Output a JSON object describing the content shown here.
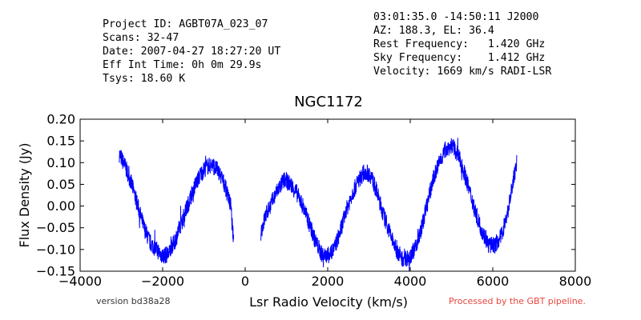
{
  "header_left": [
    "Project ID: AGBT07A_023_07",
    "Scans: 32-47",
    "Date: 2007-04-27 18:27:20 UT",
    "Eff Int Time: 0h 0m 29.9s",
    "Tsys: 18.60 K"
  ],
  "header_right": [
    "03:01:35.0 -14:50:11 J2000",
    "AZ: 188.3, EL: 36.4",
    "Rest Frequency:   1.420 GHz",
    "Sky Frequency:    1.412 GHz",
    "Velocity: 1669 km/s RADI-LSR"
  ],
  "footer": {
    "version": "version bd38a28",
    "pipeline": "Processed by the GBT pipeline.",
    "pipeline_color": "#e8453c"
  },
  "chart_data": {
    "type": "line",
    "title": "NGC1172",
    "xlabel": "Lsr Radio Velocity (km/s)",
    "ylabel": "Flux Density (Jy)",
    "xlim": [
      -4000,
      8000
    ],
    "ylim": [
      -0.15,
      0.2
    ],
    "xticks": [
      -4000,
      -2000,
      0,
      2000,
      4000,
      6000,
      8000
    ],
    "xtick_labels": [
      "−4000",
      "−2000",
      "0",
      "2000",
      "4000",
      "6000",
      "8000"
    ],
    "yticks": [
      -0.15,
      -0.1,
      -0.05,
      0.0,
      0.05,
      0.1,
      0.15,
      0.2
    ],
    "ytick_labels": [
      "−0.15",
      "−0.10",
      "−0.05",
      "0.00",
      "0.05",
      "0.10",
      "0.15",
      "0.20"
    ],
    "grid": false,
    "line_color": "#0000ff",
    "series": [
      {
        "segment": 1,
        "x": [
          -3050,
          -2900,
          -2750,
          -2600,
          -2450,
          -2300,
          -2150,
          -2000,
          -1850,
          -1700,
          -1550,
          -1400,
          -1250,
          -1100,
          -950,
          -800,
          -650,
          -500,
          -350,
          -280
        ],
        "y": [
          0.12,
          0.09,
          0.05,
          0.0,
          -0.05,
          -0.085,
          -0.1,
          -0.115,
          -0.11,
          -0.08,
          -0.04,
          0.0,
          0.04,
          0.07,
          0.09,
          0.095,
          0.08,
          0.05,
          0.0,
          -0.085
        ]
      },
      {
        "segment": 2,
        "x": [
          380,
          500,
          650,
          800,
          950,
          1100,
          1250,
          1400,
          1550,
          1700,
          1850,
          2000,
          2150,
          2300,
          2450,
          2600,
          2750,
          2900,
          3050,
          3200,
          3350,
          3500,
          3650,
          3800,
          3950,
          4100,
          4250,
          4400,
          4550,
          4700,
          4850,
          5000,
          5150,
          5300,
          5450,
          5600,
          5750,
          5900,
          6050,
          6200,
          6350,
          6500,
          6580
        ],
        "y": [
          -0.06,
          -0.02,
          0.01,
          0.04,
          0.06,
          0.05,
          0.03,
          0.0,
          -0.04,
          -0.08,
          -0.11,
          -0.115,
          -0.1,
          -0.06,
          -0.01,
          0.03,
          0.06,
          0.08,
          0.07,
          0.03,
          -0.02,
          -0.06,
          -0.1,
          -0.12,
          -0.12,
          -0.1,
          -0.06,
          0.0,
          0.06,
          0.1,
          0.13,
          0.14,
          0.12,
          0.08,
          0.03,
          -0.02,
          -0.06,
          -0.09,
          -0.09,
          -0.07,
          -0.02,
          0.06,
          0.1
        ]
      }
    ]
  }
}
